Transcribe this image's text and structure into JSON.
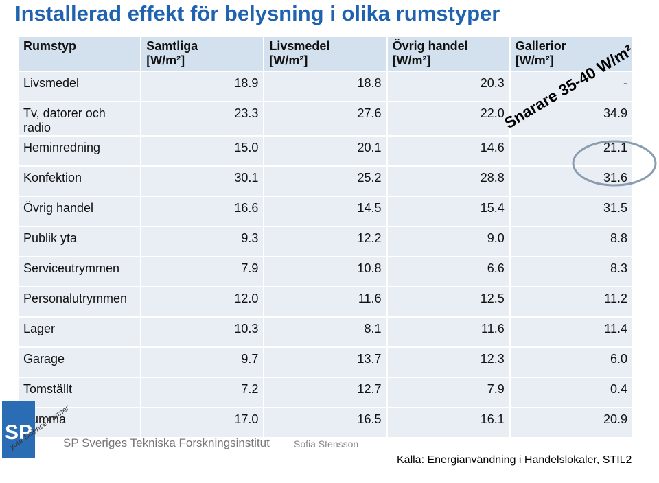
{
  "title": "Installerad effekt för belysning i olika rumstyper",
  "table": {
    "header": [
      "Rumstyp",
      "Samtliga\n[W/m²]",
      "Livsmedel\n[W/m²]",
      "Övrig handel\n[W/m²]",
      "Gallerior\n[W/m²]"
    ],
    "rows": [
      [
        "Livsmedel",
        "18.9",
        "18.8",
        "20.3",
        "-"
      ],
      [
        "Tv, datorer och\nradio",
        "23.3",
        "27.6",
        "22.0",
        "34.9"
      ],
      [
        "Heminredning",
        "15.0",
        "20.1",
        "14.6",
        "21.1"
      ],
      [
        "Konfektion",
        "30.1",
        "25.2",
        "28.8",
        "31.6"
      ],
      [
        "Övrig handel",
        "16.6",
        "14.5",
        "15.4",
        "31.5"
      ],
      [
        "Publik yta",
        "9.3",
        "12.2",
        "9.0",
        "8.8"
      ],
      [
        "Serviceutrymmen",
        "7.9",
        "10.8",
        "6.6",
        "8.3"
      ],
      [
        "Personalutrymmen",
        "12.0",
        "11.6",
        "12.5",
        "11.2"
      ],
      [
        "Lager",
        "10.3",
        "8.1",
        "11.6",
        "11.4"
      ],
      [
        "Garage",
        "9.7",
        "13.7",
        "12.3",
        "6.0"
      ],
      [
        "Tomställt",
        "7.2",
        "12.7",
        "7.9",
        "0.4"
      ],
      [
        "Summa",
        "17.0",
        "16.5",
        "16.1",
        "20.9"
      ]
    ]
  },
  "annotation": "Snarare 35-40 W/m²",
  "logo": {
    "mark": "SP",
    "tagline": "your Science Partner"
  },
  "footer": {
    "institute": "SP Sveriges Tekniska Forskningsinstitut",
    "author": "Sofia Stensson",
    "source": "Källa: Energianvändning i Handelslokaler, STIL2"
  }
}
